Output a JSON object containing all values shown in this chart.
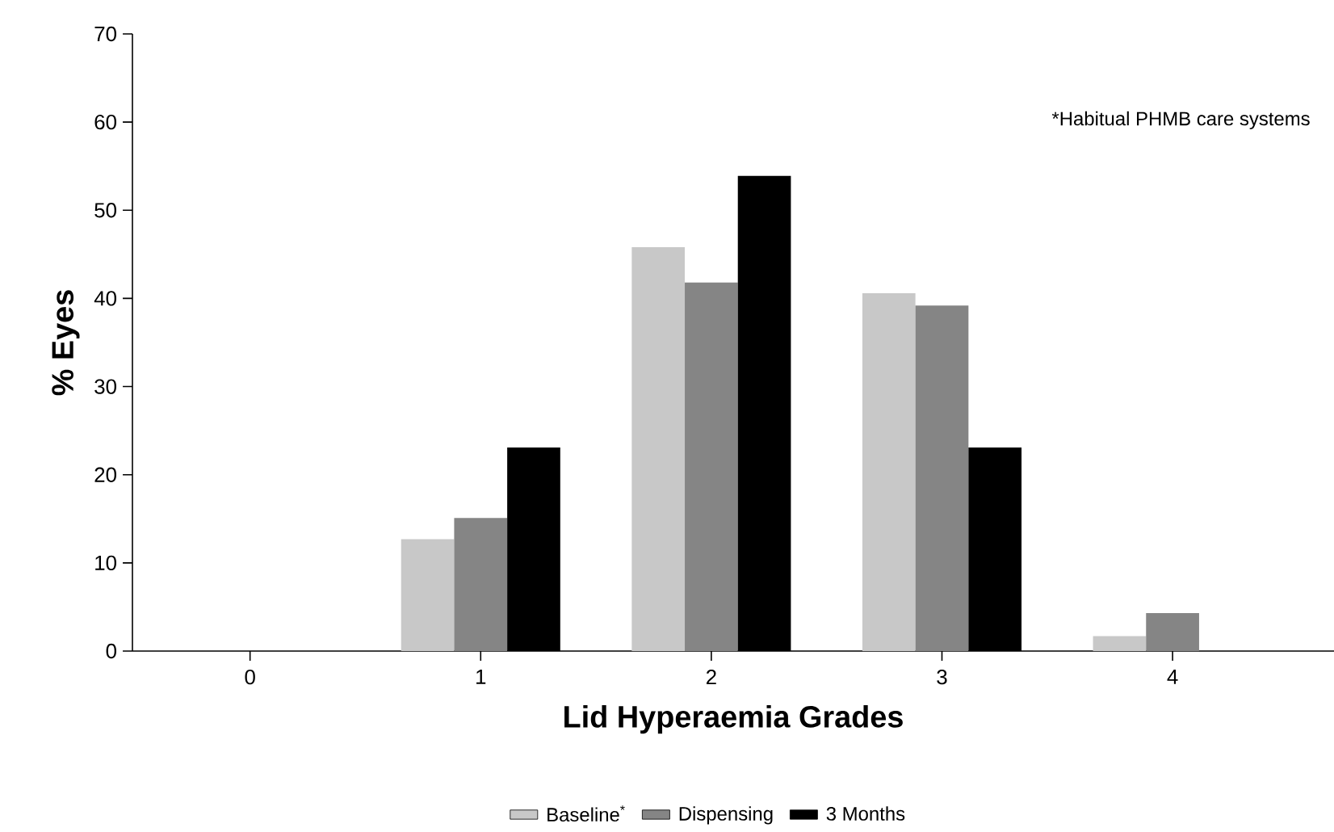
{
  "chart_data": {
    "type": "bar",
    "xlabel": "Lid Hyperaemia Grades",
    "ylabel": "% Eyes",
    "categories": [
      "0",
      "1",
      "2",
      "3",
      "4"
    ],
    "series": [
      {
        "name": "Baseline$^{*}$",
        "color": "#c8c8c8",
        "values": [
          0,
          12.7,
          45.8,
          40.6,
          1.7
        ]
      },
      {
        "name": "Dispensing",
        "color": "#858585",
        "values": [
          0,
          15.1,
          41.8,
          39.2,
          4.3
        ]
      },
      {
        "name": "3 Months",
        "color": "#000000",
        "values": [
          0,
          23.1,
          53.9,
          23.1,
          0
        ]
      }
    ],
    "ylim": [
      0,
      70
    ],
    "yticks": [
      0,
      10,
      20,
      30,
      40,
      50,
      60,
      70
    ],
    "annotations": [
      "*Habitual PHMB care systems"
    ],
    "legend": "bottom",
    "grid": false
  }
}
